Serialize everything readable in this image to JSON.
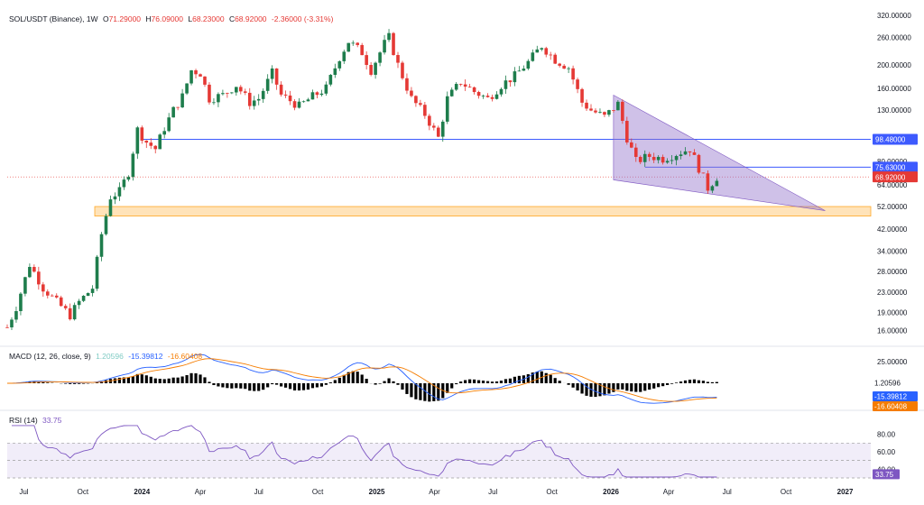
{
  "header": {
    "symbol": "SOL/USDT (Binance), 1W",
    "open_label": "O",
    "open": "71.29000",
    "high_label": "H",
    "high": "76.09000",
    "low_label": "L",
    "low": "68.23000",
    "close_label": "C",
    "close": "68.92000",
    "change": "-2.36000 (-3.31%)"
  },
  "macd_header": {
    "name": "MACD (12, 26, close, 9)",
    "hist": "1.20596",
    "macd": "-15.39812",
    "signal": "-16.60408"
  },
  "rsi_header": {
    "name": "RSI (14)",
    "value": "33.75"
  },
  "colors": {
    "up": "#26a69a",
    "up_dark": "#1e7d4c",
    "down": "#e53935",
    "blue_line": "#3d5afe",
    "zone": "#ffcc80",
    "wedge": "#9575cd",
    "macd": "#2962ff",
    "signal": "#f57c00",
    "rsi": "#7e57c2"
  },
  "chart_data": [
    {
      "type": "candlestick",
      "title": "SOL/USDT (Binance), 1W",
      "y_scale": "log",
      "ylim": [
        14.5,
        340
      ],
      "y_ticks": [
        "320.00000",
        "260.00000",
        "200.00000",
        "160.00000",
        "130.00000",
        "98.48000",
        "80.00000",
        "75.63000",
        "68.92000",
        "64.00000",
        "52.00000",
        "42.00000",
        "34.00000",
        "28.00000",
        "23.00000",
        "19.00000",
        "16.00000"
      ],
      "y_tick_values": [
        320,
        260,
        200,
        160,
        130,
        98.48,
        80,
        75.63,
        68.92,
        64,
        52,
        42,
        34,
        28,
        23,
        19,
        16
      ],
      "x_ticks": [
        "Jul",
        "Oct",
        "2024",
        "Apr",
        "Jul",
        "Oct",
        "2025",
        "Apr",
        "Jul",
        "Oct",
        "2026",
        "Apr",
        "Jul",
        "Oct",
        "2027"
      ],
      "x_tick_dates": [
        "2023-07-01",
        "2023-10-01",
        "2024-01-01",
        "2024-04-01",
        "2024-07-01",
        "2024-10-01",
        "2025-01-01",
        "2025-04-01",
        "2025-07-01",
        "2025-10-01",
        "2026-01-01",
        "2026-04-01",
        "2026-07-01",
        "2026-10-01",
        "2027-01-01"
      ],
      "x_range": [
        "2023-06-05",
        "2027-02-10"
      ],
      "price_path": [
        [
          "2023-06-05",
          16.5
        ],
        [
          "2023-06-19",
          20
        ],
        [
          "2023-07-10",
          30
        ],
        [
          "2023-07-31",
          24
        ],
        [
          "2023-08-21",
          21
        ],
        [
          "2023-09-11",
          18.5
        ],
        [
          "2023-09-25",
          21
        ],
        [
          "2023-10-16",
          24
        ],
        [
          "2023-10-30",
          40
        ],
        [
          "2023-11-13",
          57
        ],
        [
          "2023-11-27",
          60
        ],
        [
          "2023-12-11",
          72
        ],
        [
          "2023-12-25",
          108
        ],
        [
          "2024-01-08",
          96
        ],
        [
          "2024-01-22",
          90
        ],
        [
          "2024-02-05",
          110
        ],
        [
          "2024-02-19",
          130
        ],
        [
          "2024-03-04",
          148
        ],
        [
          "2024-03-18",
          190
        ],
        [
          "2024-04-01",
          185
        ],
        [
          "2024-04-15",
          145
        ],
        [
          "2024-05-06",
          150
        ],
        [
          "2024-05-27",
          165
        ],
        [
          "2024-06-17",
          140
        ],
        [
          "2024-07-01",
          145
        ],
        [
          "2024-07-22",
          185
        ],
        [
          "2024-08-05",
          150
        ],
        [
          "2024-09-02",
          135
        ],
        [
          "2024-09-23",
          148
        ],
        [
          "2024-10-14",
          160
        ],
        [
          "2024-11-04",
          215
        ],
        [
          "2024-11-18",
          250
        ],
        [
          "2024-12-09",
          225
        ],
        [
          "2024-12-23",
          190
        ],
        [
          "2025-01-13",
          245
        ],
        [
          "2025-01-20",
          260
        ],
        [
          "2025-02-03",
          200
        ],
        [
          "2025-02-24",
          145
        ],
        [
          "2025-03-17",
          125
        ],
        [
          "2025-04-07",
          100
        ],
        [
          "2025-04-21",
          145
        ],
        [
          "2025-05-12",
          170
        ],
        [
          "2025-06-02",
          155
        ],
        [
          "2025-06-23",
          145
        ],
        [
          "2025-07-14",
          165
        ],
        [
          "2025-08-04",
          180
        ],
        [
          "2025-08-25",
          205
        ],
        [
          "2025-09-15",
          240
        ],
        [
          "2025-10-06",
          210
        ],
        [
          "2025-10-27",
          195
        ],
        [
          "2025-11-17",
          140
        ],
        [
          "2025-12-01",
          130
        ],
        [
          "2025-12-22",
          122
        ],
        [
          "2026-01-12",
          138
        ],
        [
          "2026-01-26",
          100
        ],
        [
          "2026-02-09",
          80
        ],
        [
          "2026-03-02",
          84
        ],
        [
          "2026-03-23",
          82
        ],
        [
          "2026-04-13",
          86
        ],
        [
          "2026-05-04",
          90
        ],
        [
          "2026-05-18",
          75
        ],
        [
          "2026-06-01",
          62
        ],
        [
          "2026-06-15",
          68.92
        ]
      ],
      "series": [
        {
          "name": "SOL/USDT",
          "values": "weekly OHLC candles following price_path"
        }
      ],
      "levels": [
        {
          "price": 98.48,
          "from": "2024-01-01"
        },
        {
          "price": 75.63,
          "from": "2026-02-23"
        }
      ],
      "current_price": 68.92,
      "zone": {
        "low": 47.5,
        "high": 52
      },
      "wedge": {
        "points": [
          [
            "2026-01-05",
            150
          ],
          [
            "2026-12-01",
            50
          ],
          [
            "2026-01-05",
            67
          ]
        ]
      }
    },
    {
      "type": "line",
      "title": "MACD (12, 26, close, 9)",
      "y_ticks": [
        "25.00000"
      ],
      "y_tick_values": [
        25
      ],
      "series": [
        {
          "name": "macd"
        },
        {
          "name": "signal"
        },
        {
          "name": "hist"
        }
      ],
      "values": {
        "hist": 1.20596,
        "macd": -15.39812,
        "signal": -16.60408
      }
    },
    {
      "type": "line",
      "title": "RSI (14)",
      "ylim": [
        30,
        92
      ],
      "y_ticks": [
        "80.00",
        "60.00",
        "40.00"
      ],
      "y_tick_values": [
        80,
        60,
        40
      ],
      "bands": [
        30,
        50,
        70
      ],
      "value": 33.75
    }
  ]
}
